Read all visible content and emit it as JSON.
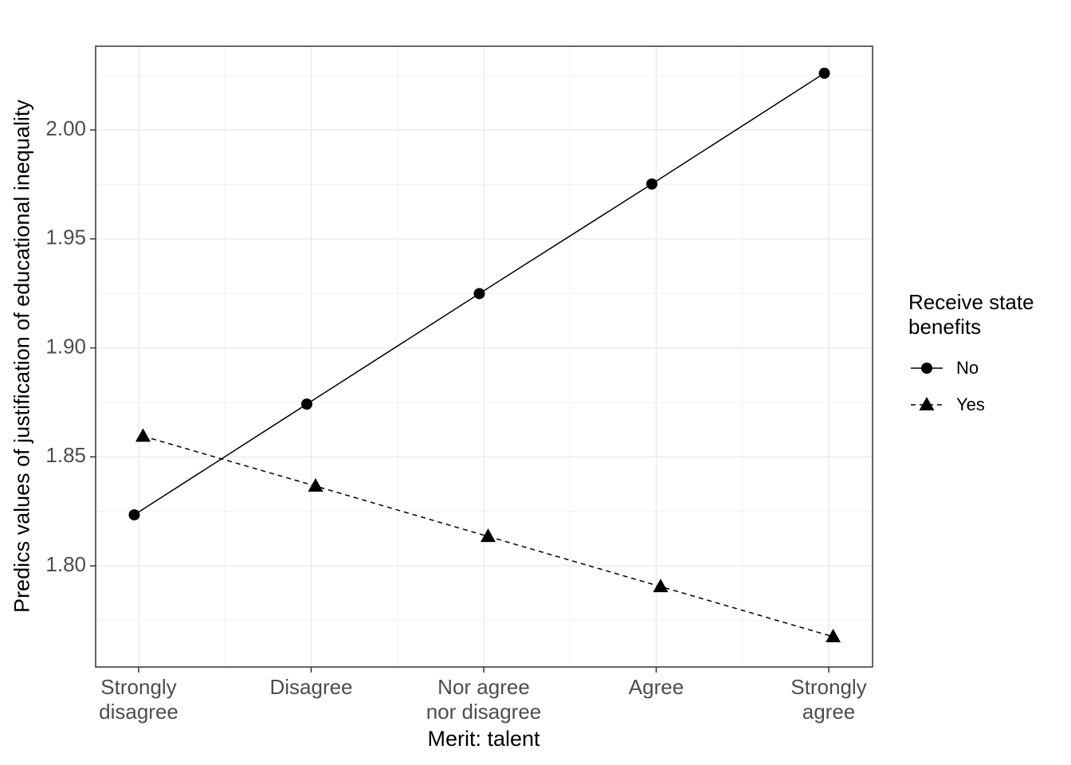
{
  "chart_data": {
    "type": "line",
    "xlabel": "Merit: talent",
    "ylabel": "Predics values of justification of educational inequality",
    "categories": [
      "Strongly\ndisagree",
      "Disagree",
      "Nor agree\nnor disagree",
      "Agree",
      "Strongly\nagree"
    ],
    "series": [
      {
        "name": "No",
        "color": "#000000",
        "linestyle": "solid",
        "marker": "circle",
        "values": [
          1.8234,
          1.8742,
          1.9249,
          1.9752,
          2.026
        ]
      },
      {
        "name": "Yes",
        "color": "#000000",
        "linestyle": "dashed",
        "marker": "triangle",
        "values": [
          1.8595,
          1.8366,
          1.8135,
          1.7905,
          1.7675
        ]
      }
    ],
    "legend_title": "Receive state\nbenefits",
    "legend_position": "right",
    "ylim": [
      1.7536,
      2.0384
    ],
    "yticks": [
      {
        "value": 1.8,
        "label": "1.80"
      },
      {
        "value": 1.85,
        "label": "1.85"
      },
      {
        "value": 1.9,
        "label": "1.90"
      },
      {
        "value": 1.95,
        "label": "1.95"
      },
      {
        "value": 2.0,
        "label": "2.00"
      }
    ],
    "grid": true
  }
}
